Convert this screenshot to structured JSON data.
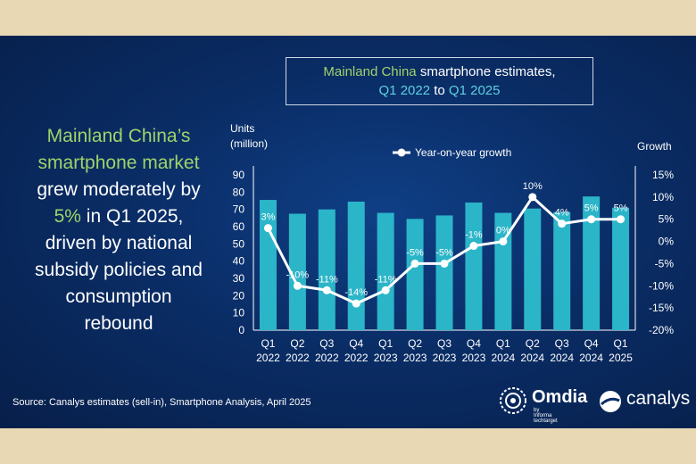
{
  "headline": {
    "part1_green": "Mainland China’s",
    "part2_green": "smartphone market",
    "part3": "grew moderately by",
    "part4_green": "5%",
    "part5": " in Q1 2025,",
    "part6": "driven by national",
    "part7": "subsidy policies and",
    "part8": "consumption",
    "part9": "rebound"
  },
  "title_box": {
    "line1_green": "Mainland China",
    "line1_rest": " smartphone estimates,",
    "line2_a": "Q1 2022",
    "line2_mid": " to ",
    "line2_b": "Q1 2025"
  },
  "source": "Source: Canalys estimates (sell-in), Smartphone Analysis, April 2025",
  "logos": {
    "omdia": "Omdia",
    "omdia_sub": "by Informa techtarget",
    "canalys": "canalys"
  },
  "colors": {
    "bar": "#2bb5c8",
    "line": "#ffffff",
    "accent_green": "#9fd36a",
    "accent_teal": "#5fd0e0"
  },
  "chart_data": {
    "type": "bar",
    "title": "Mainland China smartphone estimates, Q1 2022 to Q1 2025",
    "ylabel_left": [
      "Units",
      "(million)"
    ],
    "ylabel_right": "Growth",
    "legend": "Year-on-year growth",
    "categories": [
      [
        "Q1",
        "2022"
      ],
      [
        "Q2",
        "2022"
      ],
      [
        "Q3",
        "2022"
      ],
      [
        "Q4",
        "2022"
      ],
      [
        "Q1",
        "2023"
      ],
      [
        "Q2",
        "2023"
      ],
      [
        "Q3",
        "2023"
      ],
      [
        "Q4",
        "2023"
      ],
      [
        "Q1",
        "2024"
      ],
      [
        "Q2",
        "2024"
      ],
      [
        "Q3",
        "2024"
      ],
      [
        "Q4",
        "2024"
      ],
      [
        "Q1",
        "2025"
      ]
    ],
    "series": [
      {
        "name": "Units (million)",
        "type": "bar",
        "values": [
          75.5,
          67.5,
          70,
          74.5,
          68,
          64.5,
          66.5,
          74,
          68,
          70.5,
          68.5,
          77.5,
          71
        ]
      },
      {
        "name": "Year-on-year growth",
        "type": "line",
        "values": [
          3,
          -10,
          -11,
          -14,
          -11,
          -5,
          -5,
          -1,
          0,
          10,
          4,
          5,
          5
        ],
        "labels": [
          "3%",
          "-10%",
          "-11%",
          "-14%",
          "-11%",
          "-5%",
          "-5%",
          "-1%",
          "0%",
          "10%",
          "4%",
          "5%",
          "5%"
        ]
      }
    ],
    "ylim_left": [
      0,
      90
    ],
    "yticks_left": [
      "0",
      "10",
      "20",
      "30",
      "40",
      "50",
      "60",
      "70",
      "80",
      "90"
    ],
    "ylim_right": [
      -20,
      15
    ],
    "yticks_right": [
      "-20%",
      "-15%",
      "-10%",
      "-5%",
      "0%",
      "5%",
      "10%",
      "15%"
    ]
  }
}
